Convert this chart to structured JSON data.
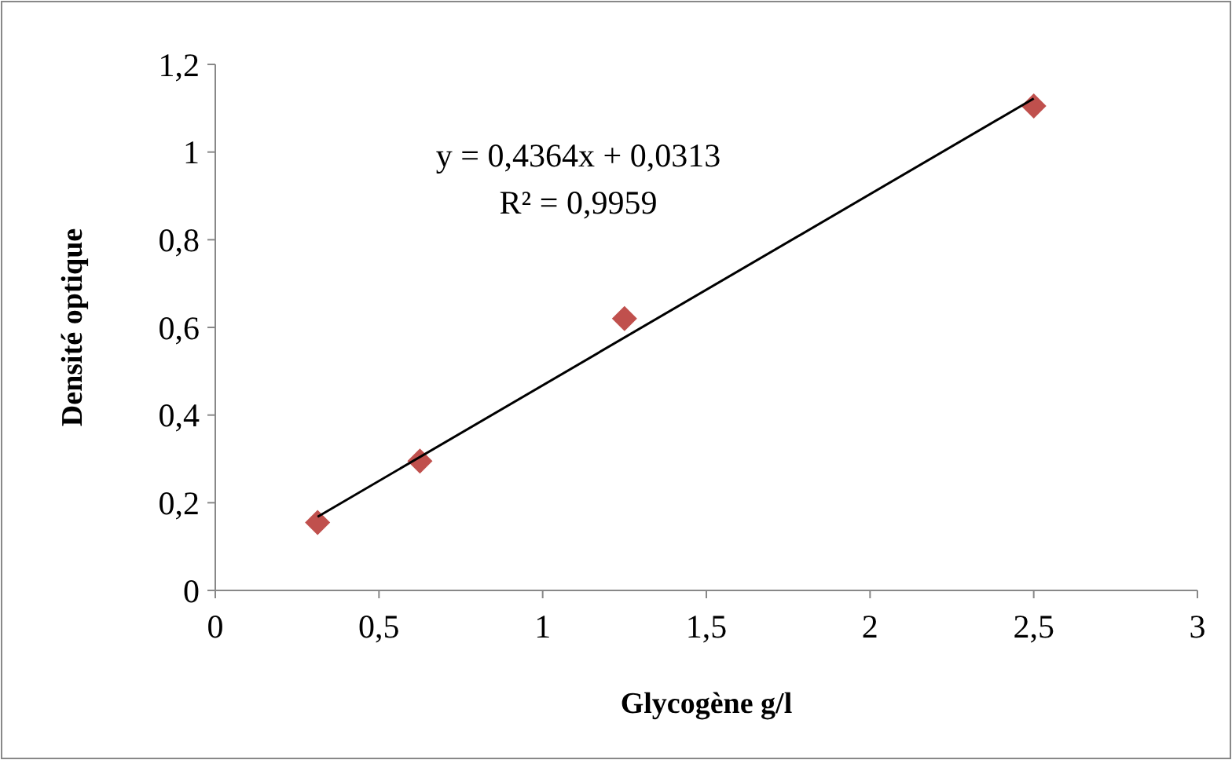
{
  "chart_data": {
    "type": "scatter",
    "xlabel": "Glycogène g/l",
    "ylabel": "Densité optique",
    "series": [
      {
        "type": "scatter",
        "color": "#c0504d",
        "marker": "diamond",
        "x": [
          0.3125,
          0.625,
          1.25,
          2.5
        ],
        "values": [
          0.155,
          0.295,
          0.62,
          1.105
        ]
      },
      {
        "type": "line",
        "color": "#000000",
        "marker": "none",
        "x": [
          0.3125,
          2.5
        ],
        "values": [
          0.168,
          1.122
        ]
      }
    ],
    "annotations": [
      "y = 0,4364x + 0,0313",
      "R² = 0,9959"
    ],
    "xlim": [
      0,
      3
    ],
    "xticks": [
      0,
      {
        "value": 0.5,
        "label": "0,5"
      },
      1,
      {
        "value": 1.5,
        "label": "1,5"
      },
      2,
      {
        "value": 2.5,
        "label": "2,5"
      },
      3
    ],
    "ylim": [
      0,
      1.2
    ],
    "yticks": [
      0,
      {
        "value": 0.2,
        "label": "0,2"
      },
      {
        "value": 0.4,
        "label": "0,4"
      },
      {
        "value": 0.6,
        "label": "0,6"
      },
      {
        "value": 0.8,
        "label": "0,8"
      },
      1,
      {
        "value": 1.2,
        "label": "1,2"
      }
    ],
    "grid": false
  }
}
